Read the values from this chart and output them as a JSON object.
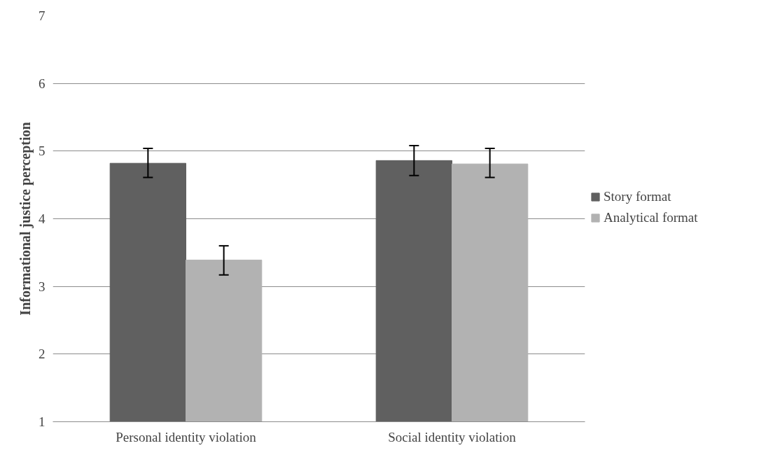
{
  "chart_data": {
    "type": "bar",
    "ylabel": "Informational justice perception",
    "categories": [
      "Personal identity violation",
      "Social identity violation"
    ],
    "series": [
      {
        "name": "Story format",
        "color": "#606060",
        "values": [
          4.82,
          4.86
        ],
        "errors": [
          [
            4.61,
            5.04
          ],
          [
            4.64,
            5.08
          ]
        ]
      },
      {
        "name": "Analytical format",
        "color": "#b2b2b2",
        "values": [
          3.39,
          4.81
        ],
        "errors": [
          [
            3.17,
            3.6
          ],
          [
            4.61,
            5.04
          ]
        ]
      }
    ],
    "ylim": [
      1,
      7
    ],
    "yticks": [
      1,
      2,
      3,
      4,
      5,
      6,
      7
    ],
    "grid": "y",
    "legend": "right"
  }
}
